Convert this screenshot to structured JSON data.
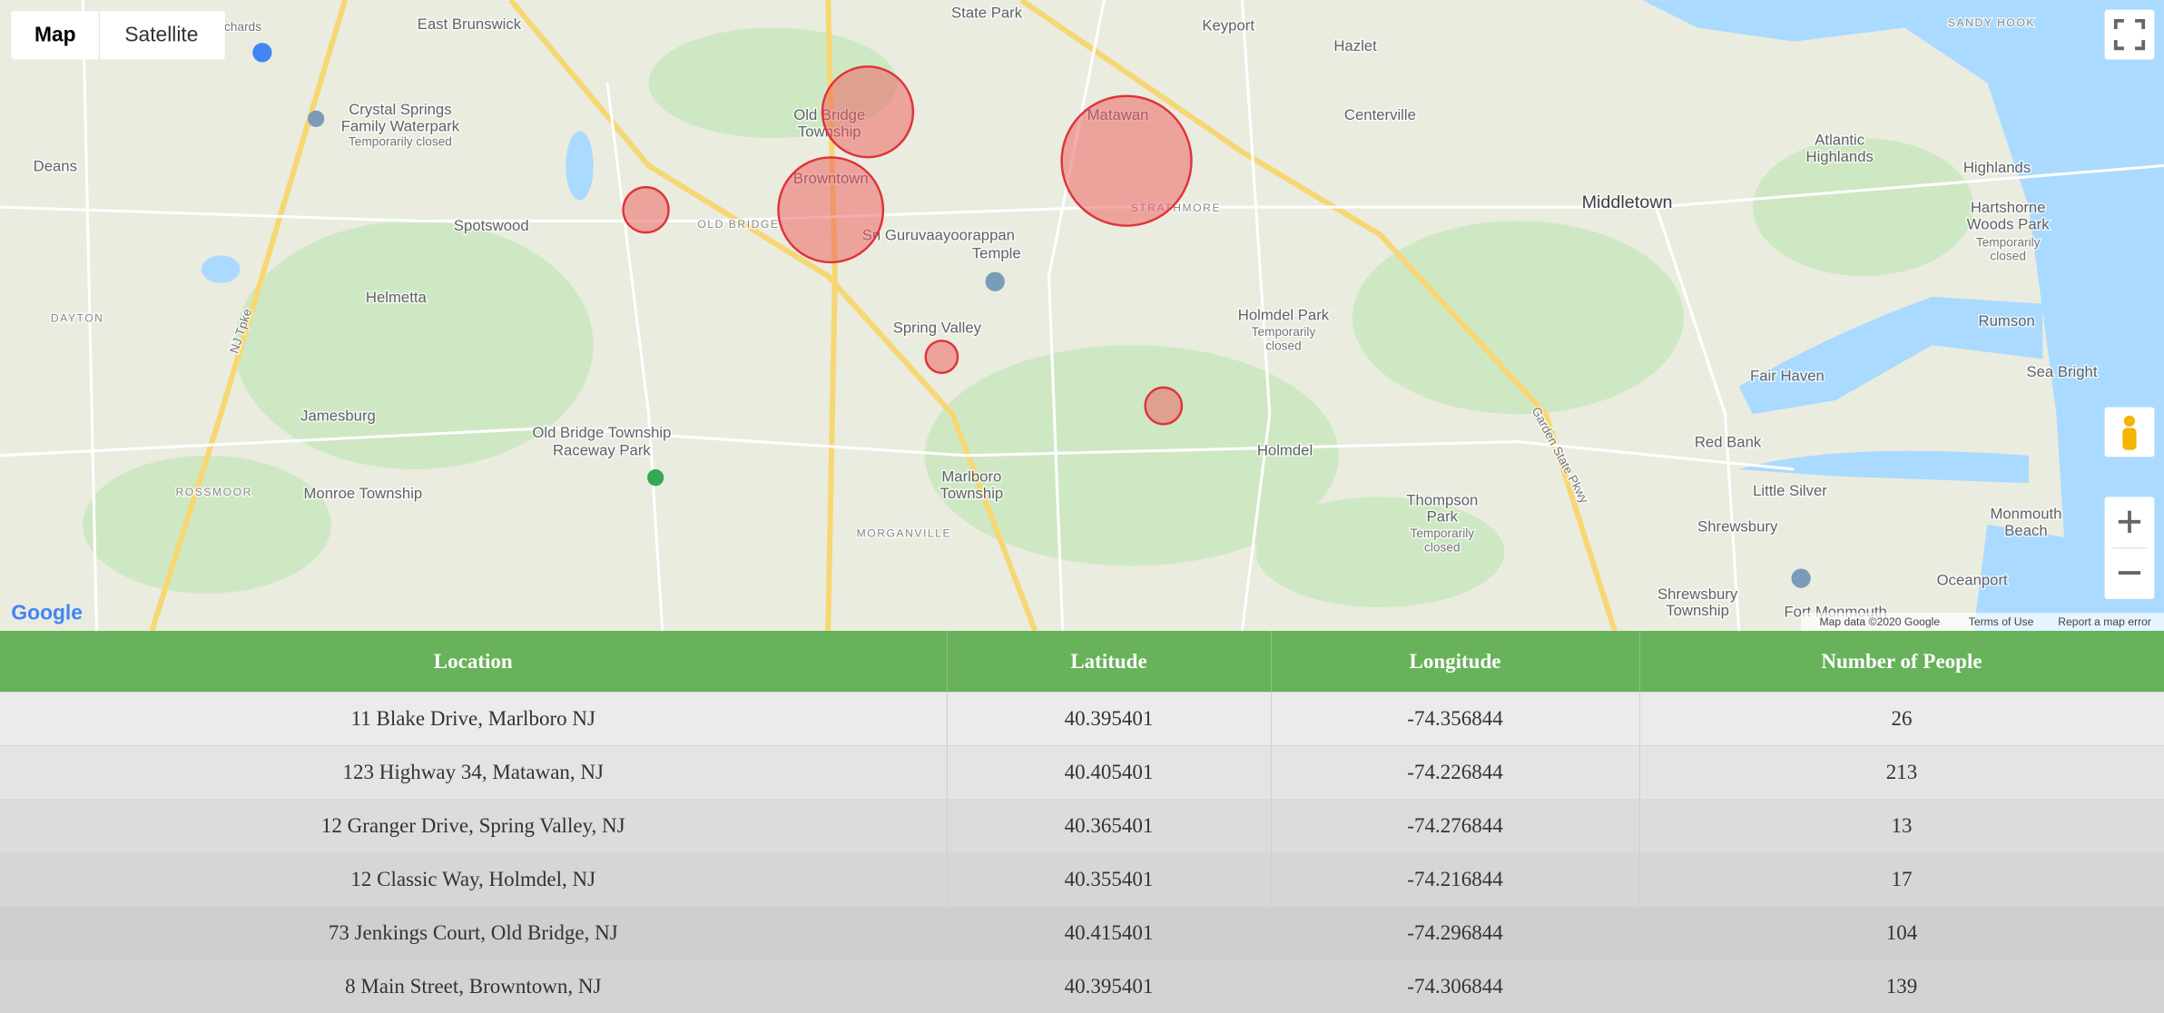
{
  "map": {
    "buttons": [
      "Map",
      "Satellite"
    ],
    "labels": [
      "East Brunswick",
      "Farm & Orchards",
      "Crystal Springs",
      "Family Waterpark",
      "Temporarily closed",
      "Deans",
      "Spotswood",
      "Helmetta",
      "DAYTON",
      "Jamesburg",
      "ROSSMOOR",
      "Monroe Township",
      "Old Bridge Township",
      "Raceway Park",
      "Old Bridge",
      "Township",
      "Browntown",
      "OLD BRIDGE",
      "Sri Guruvaayoorappan",
      "Temple",
      "Spring Valley",
      "Marlboro",
      "Township",
      "MORGANVILLE",
      "Matawan",
      "STRATHMORE",
      "Keyport",
      "Hazlet",
      "Centerville",
      "Holmdel Park",
      "Temporarily",
      "closed",
      "Holmdel",
      "Thompson",
      "Park",
      "Temporarily",
      "closed",
      "Middletown",
      "Atlantic",
      "Highlands",
      "Highlands",
      "Hartshorne",
      "Woods Park",
      "Temporarily",
      "closed",
      "Rumson",
      "Fair Haven",
      "Sea Bright",
      "Red Bank",
      "Little Silver",
      "Shrewsbury",
      "Monmouth",
      "Beach",
      "Oceanport",
      "Shrewsbury",
      "Township",
      "Fort Monmouth",
      "State Park",
      "SANDY HOOK",
      "Garden State Pkwy",
      "NJ Tpke"
    ],
    "attribution": [
      "Map data ©2020 Google",
      "Terms of Use",
      "Report a map error"
    ],
    "logo": "Google"
  },
  "table": {
    "columns": [
      "Location",
      "Latitude",
      "Longitude",
      "Number of People"
    ],
    "rows": [
      [
        "11 Blake Drive, Marlboro NJ",
        40.395401,
        -74.356844,
        26
      ],
      [
        "123 Highway 34, Matawan, NJ",
        40.405401,
        -74.226844,
        213
      ],
      [
        "12 Granger Drive, Spring Valley, NJ",
        40.365401,
        -74.276844,
        13
      ],
      [
        "12 Classic Way, Holmdel, NJ",
        40.355401,
        -74.216844,
        17
      ],
      [
        "73 Jenkings Court, Old Bridge, NJ",
        40.415401,
        -74.296844,
        104
      ],
      [
        "8 Main Street, Browntown, NJ",
        40.395401,
        -74.306844,
        139
      ]
    ]
  }
}
